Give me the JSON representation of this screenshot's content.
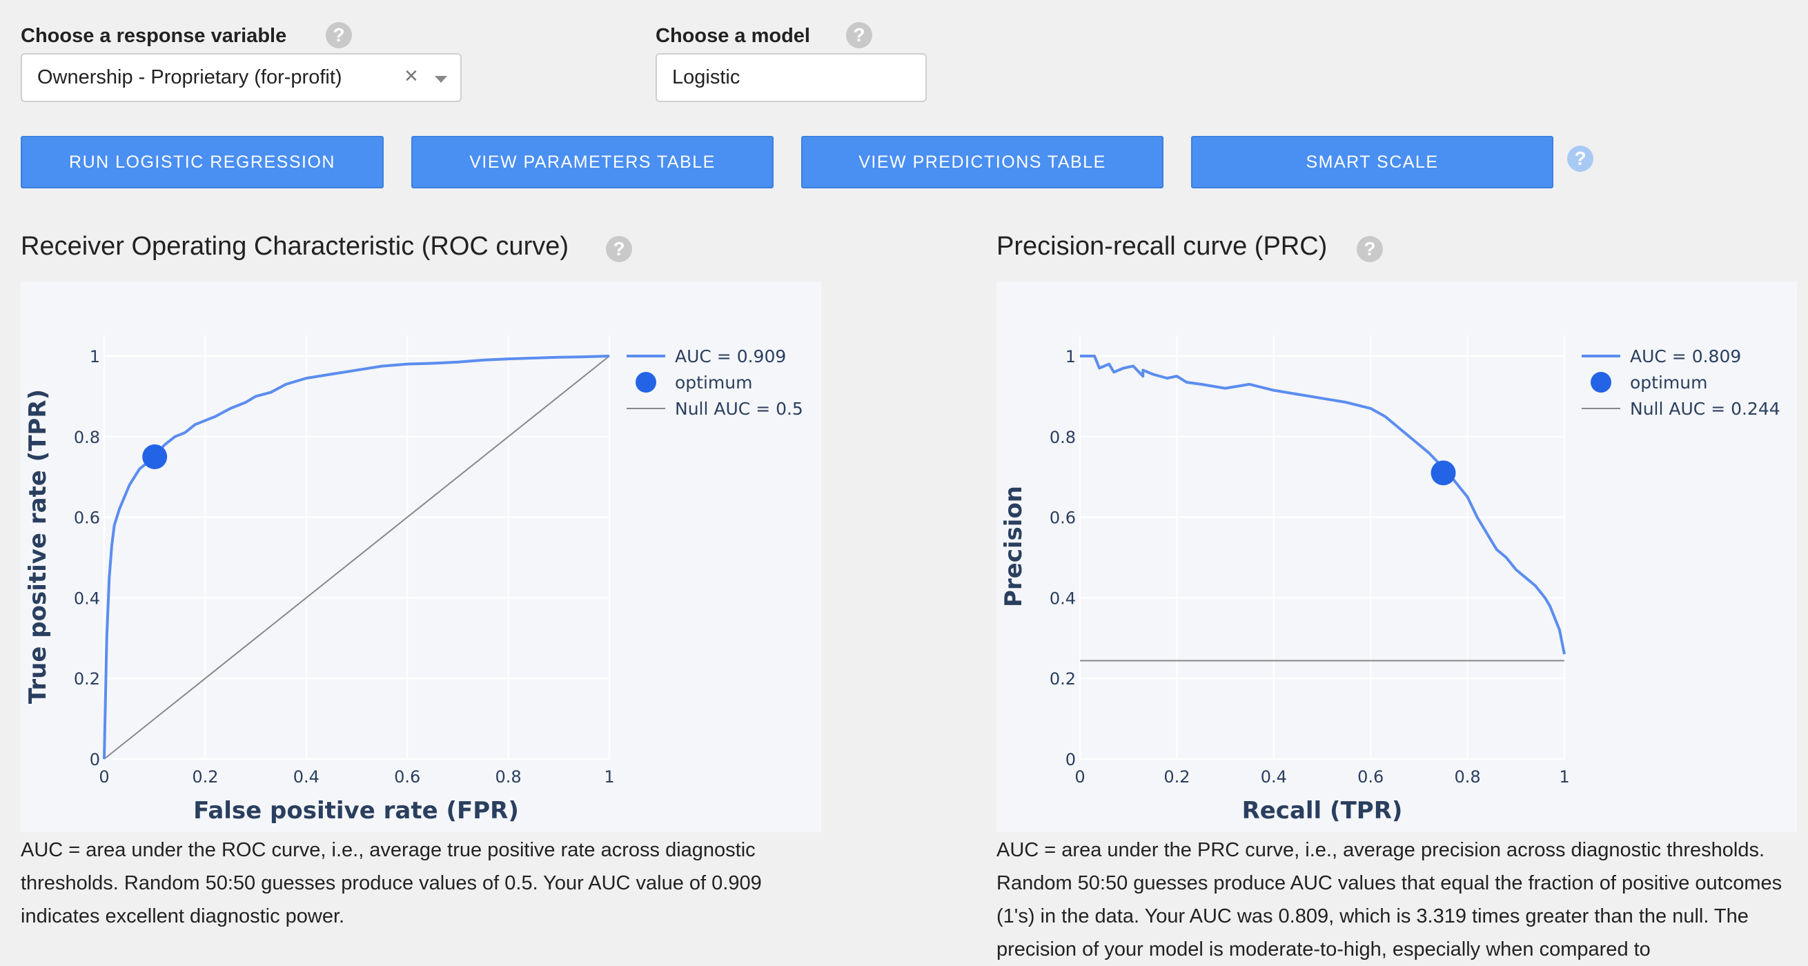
{
  "response_variable": {
    "label": "Choose a response variable",
    "value": "Ownership - Proprietary (for-profit)",
    "clear_glyph": "×",
    "help_glyph": "?"
  },
  "model": {
    "label": "Choose a model",
    "value": "Logistic",
    "help_glyph": "?"
  },
  "buttons": {
    "run": "RUN LOGISTIC REGRESSION",
    "params": "VIEW PARAMETERS TABLE",
    "predictions": "VIEW PREDICTIONS TABLE",
    "smart_scale": "SMART SCALE",
    "help_glyph": "?"
  },
  "roc": {
    "title": "Receiver Operating Characteristic (ROC curve)",
    "help_glyph": "?",
    "description": "AUC = area under the ROC curve, i.e., average true positive rate across diagnostic thresholds. Random 50:50 guesses produce values of 0.5. Your AUC value of 0.909 indicates excellent diagnostic power."
  },
  "prc": {
    "title": "Precision-recall curve (PRC)",
    "help_glyph": "?",
    "description": "AUC = area under the PRC curve, i.e., average precision across diagnostic thresholds. Random 50:50 guesses produce AUC values that equal the fraction of positive outcomes (1's) in the data. Your AUC was 0.809, which is 3.319 times greater than the null. The precision of your model is moderate-to-high, especially when compared to"
  },
  "colors": {
    "curve": "#5b8def",
    "optimum": "#2364e6",
    "null_line": "#888888",
    "button": "#4a8ff2",
    "axis_title": "#2a3f5f"
  },
  "chart_data": [
    {
      "type": "line",
      "xlabel": "False positive rate (FPR)",
      "ylabel": "True positive rate (TPR)",
      "xlim": [
        0,
        1
      ],
      "ylim": [
        0,
        1
      ],
      "xticks": [
        "0",
        "0.2",
        "0.4",
        "0.6",
        "0.8",
        "1"
      ],
      "yticks": [
        "0",
        "0.2",
        "0.4",
        "0.6",
        "0.8",
        "1"
      ],
      "grid": true,
      "legend_position": "top-right",
      "series": [
        {
          "name": "AUC = 0.909",
          "x": [
            0,
            0.002,
            0.005,
            0.01,
            0.015,
            0.02,
            0.03,
            0.04,
            0.05,
            0.06,
            0.07,
            0.08,
            0.09,
            0.1,
            0.12,
            0.14,
            0.16,
            0.18,
            0.2,
            0.22,
            0.25,
            0.28,
            0.3,
            0.33,
            0.36,
            0.4,
            0.45,
            0.5,
            0.55,
            0.6,
            0.65,
            0.7,
            0.75,
            0.8,
            0.85,
            0.9,
            0.95,
            1.0
          ],
          "y": [
            0,
            0.12,
            0.3,
            0.45,
            0.53,
            0.58,
            0.62,
            0.65,
            0.68,
            0.7,
            0.72,
            0.73,
            0.745,
            0.755,
            0.78,
            0.8,
            0.81,
            0.83,
            0.84,
            0.85,
            0.87,
            0.885,
            0.9,
            0.91,
            0.93,
            0.945,
            0.955,
            0.965,
            0.975,
            0.98,
            0.982,
            0.985,
            0.99,
            0.993,
            0.995,
            0.997,
            0.998,
            1.0
          ]
        },
        {
          "name": "optimum",
          "x": [
            0.1
          ],
          "y": [
            0.75
          ]
        },
        {
          "name": "Null AUC = 0.5",
          "x": [
            0,
            1
          ],
          "y": [
            0,
            1
          ]
        }
      ]
    },
    {
      "type": "line",
      "xlabel": "Recall (TPR)",
      "ylabel": "Precision",
      "xlim": [
        0,
        1
      ],
      "ylim": [
        0,
        1
      ],
      "xticks": [
        "0",
        "0.2",
        "0.4",
        "0.6",
        "0.8",
        "1"
      ],
      "yticks": [
        "0",
        "0.2",
        "0.4",
        "0.6",
        "0.8",
        "1"
      ],
      "grid": true,
      "legend_position": "top-right",
      "series": [
        {
          "name": "AUC = 0.809",
          "x": [
            0,
            0.01,
            0.03,
            0.04,
            0.06,
            0.07,
            0.09,
            0.11,
            0.13,
            0.13,
            0.15,
            0.18,
            0.2,
            0.22,
            0.25,
            0.3,
            0.35,
            0.4,
            0.45,
            0.5,
            0.55,
            0.6,
            0.63,
            0.66,
            0.69,
            0.72,
            0.74,
            0.76,
            0.78,
            0.8,
            0.82,
            0.84,
            0.86,
            0.88,
            0.9,
            0.92,
            0.94,
            0.96,
            0.97,
            0.98,
            0.99,
            1.0
          ],
          "y": [
            1,
            1,
            1,
            0.97,
            0.98,
            0.96,
            0.97,
            0.975,
            0.95,
            0.965,
            0.955,
            0.945,
            0.95,
            0.935,
            0.93,
            0.92,
            0.93,
            0.915,
            0.905,
            0.895,
            0.885,
            0.87,
            0.85,
            0.82,
            0.79,
            0.76,
            0.735,
            0.71,
            0.68,
            0.65,
            0.6,
            0.56,
            0.52,
            0.5,
            0.47,
            0.45,
            0.43,
            0.4,
            0.38,
            0.35,
            0.32,
            0.26
          ]
        },
        {
          "name": "optimum",
          "x": [
            0.75
          ],
          "y": [
            0.71
          ]
        },
        {
          "name": "Null AUC = 0.244",
          "x": [
            0,
            1
          ],
          "y": [
            0.244,
            0.244
          ]
        }
      ]
    }
  ]
}
